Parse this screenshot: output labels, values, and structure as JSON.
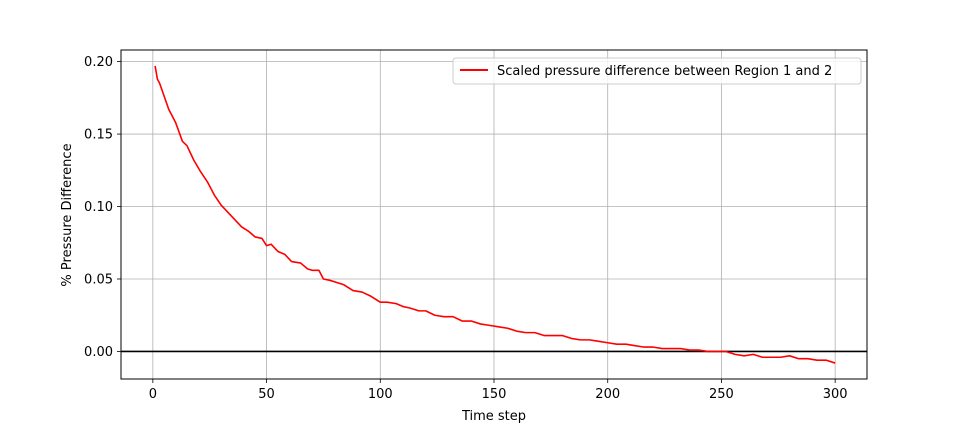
{
  "chart_data": {
    "type": "line",
    "title": "",
    "xlabel": "Time step",
    "ylabel": "% Pressure Difference",
    "xlim": [
      -14,
      314
    ],
    "ylim": [
      -0.019,
      0.208
    ],
    "x_ticks": [
      0,
      50,
      100,
      150,
      200,
      250,
      300
    ],
    "x_tick_labels": [
      "0",
      "50",
      "100",
      "150",
      "200",
      "250",
      "300"
    ],
    "y_ticks": [
      0.0,
      0.05,
      0.1,
      0.15,
      0.2
    ],
    "y_tick_labels": [
      "0.00",
      "0.05",
      "0.10",
      "0.15",
      "0.20"
    ],
    "grid": true,
    "legend_position": "top-right",
    "reference_line": {
      "y": 0.0,
      "color": "#000000"
    },
    "series": [
      {
        "name": "Scaled pressure difference between Region 1 and 2",
        "color": "#ff0000",
        "x": [
          1,
          2,
          3,
          5,
          7,
          10,
          13,
          15,
          18,
          21,
          24,
          27,
          30,
          33,
          36,
          39,
          42,
          45,
          48,
          50,
          52,
          55,
          58,
          61,
          65,
          68,
          70,
          73,
          75,
          78,
          80,
          84,
          88,
          92,
          96,
          100,
          103,
          107,
          110,
          113,
          117,
          120,
          124,
          128,
          132,
          136,
          140,
          144,
          148,
          152,
          156,
          160,
          164,
          168,
          172,
          176,
          180,
          184,
          188,
          192,
          196,
          200,
          204,
          208,
          212,
          216,
          220,
          224,
          228,
          232,
          236,
          240,
          244,
          248,
          252,
          256,
          260,
          264,
          268,
          272,
          276,
          280,
          284,
          288,
          292,
          296,
          300
        ],
        "y": [
          0.197,
          0.188,
          0.185,
          0.176,
          0.167,
          0.158,
          0.145,
          0.142,
          0.132,
          0.124,
          0.117,
          0.108,
          0.101,
          0.096,
          0.091,
          0.086,
          0.083,
          0.079,
          0.078,
          0.073,
          0.074,
          0.069,
          0.067,
          0.062,
          0.061,
          0.057,
          0.056,
          0.056,
          0.05,
          0.049,
          0.048,
          0.046,
          0.042,
          0.041,
          0.038,
          0.034,
          0.034,
          0.033,
          0.031,
          0.03,
          0.028,
          0.028,
          0.025,
          0.024,
          0.024,
          0.021,
          0.021,
          0.019,
          0.018,
          0.017,
          0.016,
          0.014,
          0.013,
          0.013,
          0.011,
          0.011,
          0.011,
          0.009,
          0.008,
          0.008,
          0.007,
          0.006,
          0.005,
          0.005,
          0.004,
          0.003,
          0.003,
          0.002,
          0.002,
          0.002,
          0.001,
          0.001,
          0.0,
          0.0,
          0.0,
          -0.002,
          -0.003,
          -0.002,
          -0.004,
          -0.004,
          -0.004,
          -0.003,
          -0.005,
          -0.005,
          -0.006,
          -0.006,
          -0.008
        ]
      }
    ]
  }
}
